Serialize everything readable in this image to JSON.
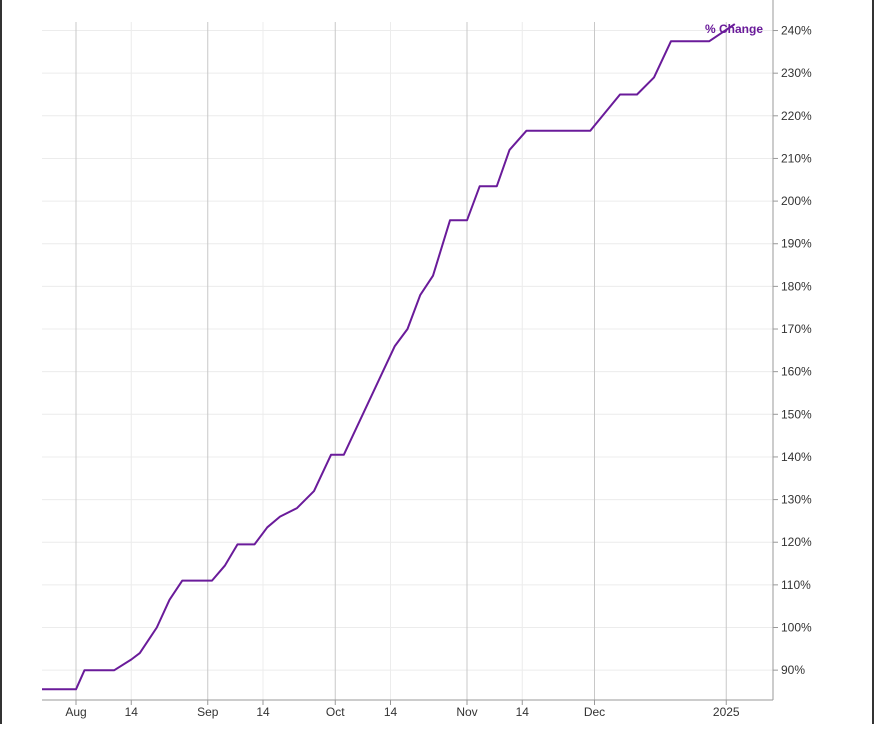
{
  "chart_data": {
    "type": "line",
    "title": "",
    "xlabel": "",
    "ylabel": "",
    "x_range": [
      "2024-07-24",
      "2025-01-12"
    ],
    "ylim": [
      83,
      242
    ],
    "y_ticks": [
      90,
      100,
      110,
      120,
      130,
      140,
      150,
      160,
      170,
      180,
      190,
      200,
      210,
      220,
      230,
      240
    ],
    "y_tick_labels": [
      "90%",
      "100%",
      "110%",
      "120%",
      "130%",
      "140%",
      "150%",
      "160%",
      "170%",
      "180%",
      "190%",
      "200%",
      "210%",
      "220%",
      "230%",
      "240%"
    ],
    "x_ticks": [
      {
        "date": "2024-08-01",
        "label": "Aug",
        "major": true
      },
      {
        "date": "2024-08-14",
        "label": "14",
        "major": false
      },
      {
        "date": "2024-09-01",
        "label": "Sep",
        "major": true
      },
      {
        "date": "2024-09-14",
        "label": "14",
        "major": false
      },
      {
        "date": "2024-10-01",
        "label": "Oct",
        "major": true
      },
      {
        "date": "2024-10-14",
        "label": "14",
        "major": false
      },
      {
        "date": "2024-11-01",
        "label": "Nov",
        "major": true
      },
      {
        "date": "2024-11-14",
        "label": "14",
        "major": false
      },
      {
        "date": "2024-12-01",
        "label": "Dec",
        "major": true
      },
      {
        "date": "2025-01-01",
        "label": "2025",
        "major": true
      }
    ],
    "grid": true,
    "series": [
      {
        "name": "% Change",
        "color": "#6a1b9a",
        "points": [
          [
            "2024-07-24",
            85.5
          ],
          [
            "2024-08-01",
            85.5
          ],
          [
            "2024-08-03",
            90
          ],
          [
            "2024-08-05",
            90
          ],
          [
            "2024-08-10",
            90
          ],
          [
            "2024-08-14",
            92.5
          ],
          [
            "2024-08-16",
            94
          ],
          [
            "2024-08-20",
            100
          ],
          [
            "2024-08-23",
            106.5
          ],
          [
            "2024-08-26",
            111
          ],
          [
            "2024-08-30",
            111
          ],
          [
            "2024-09-02",
            111
          ],
          [
            "2024-09-05",
            114.5
          ],
          [
            "2024-09-08",
            119.5
          ],
          [
            "2024-09-12",
            119.5
          ],
          [
            "2024-09-15",
            123.5
          ],
          [
            "2024-09-18",
            126
          ],
          [
            "2024-09-22",
            128
          ],
          [
            "2024-09-26",
            132
          ],
          [
            "2024-09-30",
            140.5
          ],
          [
            "2024-10-03",
            140.5
          ],
          [
            "2024-10-15",
            166
          ],
          [
            "2024-10-18",
            170
          ],
          [
            "2024-10-21",
            178
          ],
          [
            "2024-10-24",
            182.5
          ],
          [
            "2024-10-28",
            195.5
          ],
          [
            "2024-11-01",
            195.5
          ],
          [
            "2024-11-04",
            203.5
          ],
          [
            "2024-11-08",
            203.5
          ],
          [
            "2024-11-11",
            212
          ],
          [
            "2024-11-15",
            216.5
          ],
          [
            "2024-11-20",
            216.5
          ],
          [
            "2024-11-30",
            216.5
          ],
          [
            "2024-12-07",
            225
          ],
          [
            "2024-12-11",
            225
          ],
          [
            "2024-12-15",
            229
          ],
          [
            "2024-12-19",
            237.5
          ],
          [
            "2024-12-26",
            237.5
          ],
          [
            "2024-12-28",
            237.5
          ],
          [
            "2025-01-03",
            241.5
          ]
        ]
      }
    ],
    "legend_placement": "top-right"
  }
}
